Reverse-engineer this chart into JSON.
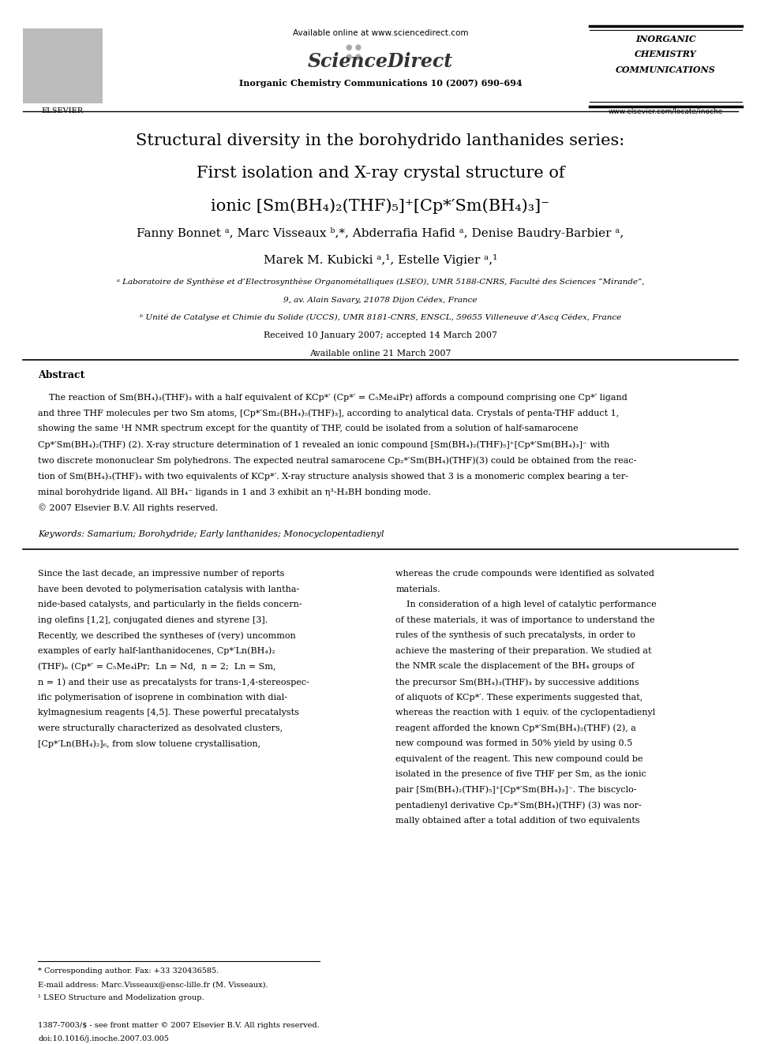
{
  "bg_color": "#ffffff",
  "page_width": 9.92,
  "page_height": 13.23,
  "header": {
    "available_online": "Available online at www.sciencedirect.com",
    "sciencedirect": "ScienceDirect",
    "journal_line": "Inorganic Chemistry Communications 10 (2007) 690–694",
    "journal_name_line1": "INORGANIC",
    "journal_name_line2": "CHEMISTRY",
    "journal_name_line3": "COMMUNICATIONS",
    "website": "www.elsevier.com/locate/inoche"
  },
  "title_lines": [
    "Structural diversity in the borohydrido lanthanides series:",
    "First isolation and X-ray crystal structure of",
    "ionic [Sm(BH₄)₂(THF)₅]⁺[Cp*′Sm(BH₄)₃]⁻"
  ],
  "authors": "Fanny Bonnet ᵃ, Marc Visseaux ᵇ,*, Abderrafia Hafid ᵃ, Denise Baudry-Barbier ᵃ,",
  "authors2": "Marek M. Kubicki ᵃ,¹, Estelle Vigier ᵃ,¹",
  "affil_a": "ᵃ Laboratoire de Synthèse et d’Electrosynthèse Organométalliques (LSEO), UMR 5188-CNRS, Faculté des Sciences “Mirande”,",
  "affil_a2": "9, av. Alain Savary, 21078 Dijon Cédex, France",
  "affil_b": "ᵇ Unité de Catalyse et Chimie du Solide (UCCS), UMR 8181-CNRS, ENSCL, 59655 Villeneuve d’Ascq Cédex, France",
  "received": "Received 10 January 2007; accepted 14 March 2007",
  "available": "Available online 21 March 2007",
  "abstract_title": "Abstract",
  "keywords": "Keywords: Samarium; Borohydride; Early lanthanides; Monocyclopentadienyl",
  "abstract_lines": [
    "    The reaction of Sm(BH₄)₃(THF)₃ with a half equivalent of KCp*′ (Cp*′ = C₅Me₄iPr) affords a compound comprising one Cp*′ ligand",
    "and three THF molecules per two Sm atoms, [Cp*′Sm₂(BH₄)₅(THF)₃], according to analytical data. Crystals of penta-THF adduct 1,",
    "showing the same ¹H NMR spectrum except for the quantity of THF, could be isolated from a solution of half-samarocene",
    "Cp*′Sm(BH₄)₂(THF) (2). X-ray structure determination of 1 revealed an ionic compound [Sm(BH₄)₂(THF)₅]⁺[Cp*′Sm(BH₄)₃]⁻ with",
    "two discrete mononuclear Sm polyhedrons. The expected neutral samarocene Cp₂*′Sm(BH₄)(THF)(3) could be obtained from the reac-",
    "tion of Sm(BH₄)₃(THF)₃ with two equivalents of KCp*′. X-ray structure analysis showed that 3 is a monomeric complex bearing a ter-",
    "minal borohydride ligand. All BH₄⁻ ligands in 1 and 3 exhibit an η³-H₃BH bonding mode.",
    "© 2007 Elsevier B.V. All rights reserved."
  ],
  "body_col1_lines": [
    "Since the last decade, an impressive number of reports",
    "have been devoted to polymerisation catalysis with lantha-",
    "nide-based catalysts, and particularly in the fields concern-",
    "ing olefins [1,2], conjugated dienes and styrene [3].",
    "Recently, we described the syntheses of (very) uncommon",
    "examples of early half-lanthanidocenes, Cp*′Ln(BH₄)₂",
    "(THF)ₙ (Cp*′ = C₅Me₄iPr;  Ln = Nd,  n = 2;  Ln = Sm,",
    "n = 1) and their use as precatalysts for trans-1,4-stereospec-",
    "ific polymerisation of isoprene in combination with dial-",
    "kylmagnesium reagents [4,5]. These powerful precatalysts",
    "were structurally characterized as desolvated clusters,",
    "[Cp*′Ln(BH₄)₂]₆, from slow toluene crystallisation,"
  ],
  "body_col2_lines": [
    "whereas the crude compounds were identified as solvated",
    "materials.",
    "    In consideration of a high level of catalytic performance",
    "of these materials, it was of importance to understand the",
    "rules of the synthesis of such precatalysts, in order to",
    "achieve the mastering of their preparation. We studied at",
    "the NMR scale the displacement of the BH₄ groups of",
    "the precursor Sm(BH₄)₃(THF)₃ by successive additions",
    "of aliquots of KCp*′. These experiments suggested that,",
    "whereas the reaction with 1 equiv. of the cyclopentadienyl",
    "reagent afforded the known Cp*′Sm(BH₄)₂(THF) (2), a",
    "new compound was formed in 50% yield by using 0.5",
    "equivalent of the reagent. This new compound could be",
    "isolated in the presence of five THF per Sm, as the ionic",
    "pair [Sm(BH₄)₂(THF)₅]⁺[Cp*′Sm(BH₄)₃]⁻. The biscyclo-",
    "pentadienyl derivative Cp₂*′Sm(BH₄)(THF) (3) was nor-",
    "mally obtained after a total addition of two equivalents"
  ],
  "footnote1": "* Corresponding author. Fax: +33 320436585.",
  "footnote2": "E-mail address: Marc.Visseaux@ensc-lille.fr (M. Visseaux).",
  "footnote3": "¹ LSEO Structure and Modelization group.",
  "footer1": "1387-7003/$ - see front matter © 2007 Elsevier B.V. All rights reserved.",
  "footer2": "doi:10.1016/j.inoche.2007.03.005"
}
